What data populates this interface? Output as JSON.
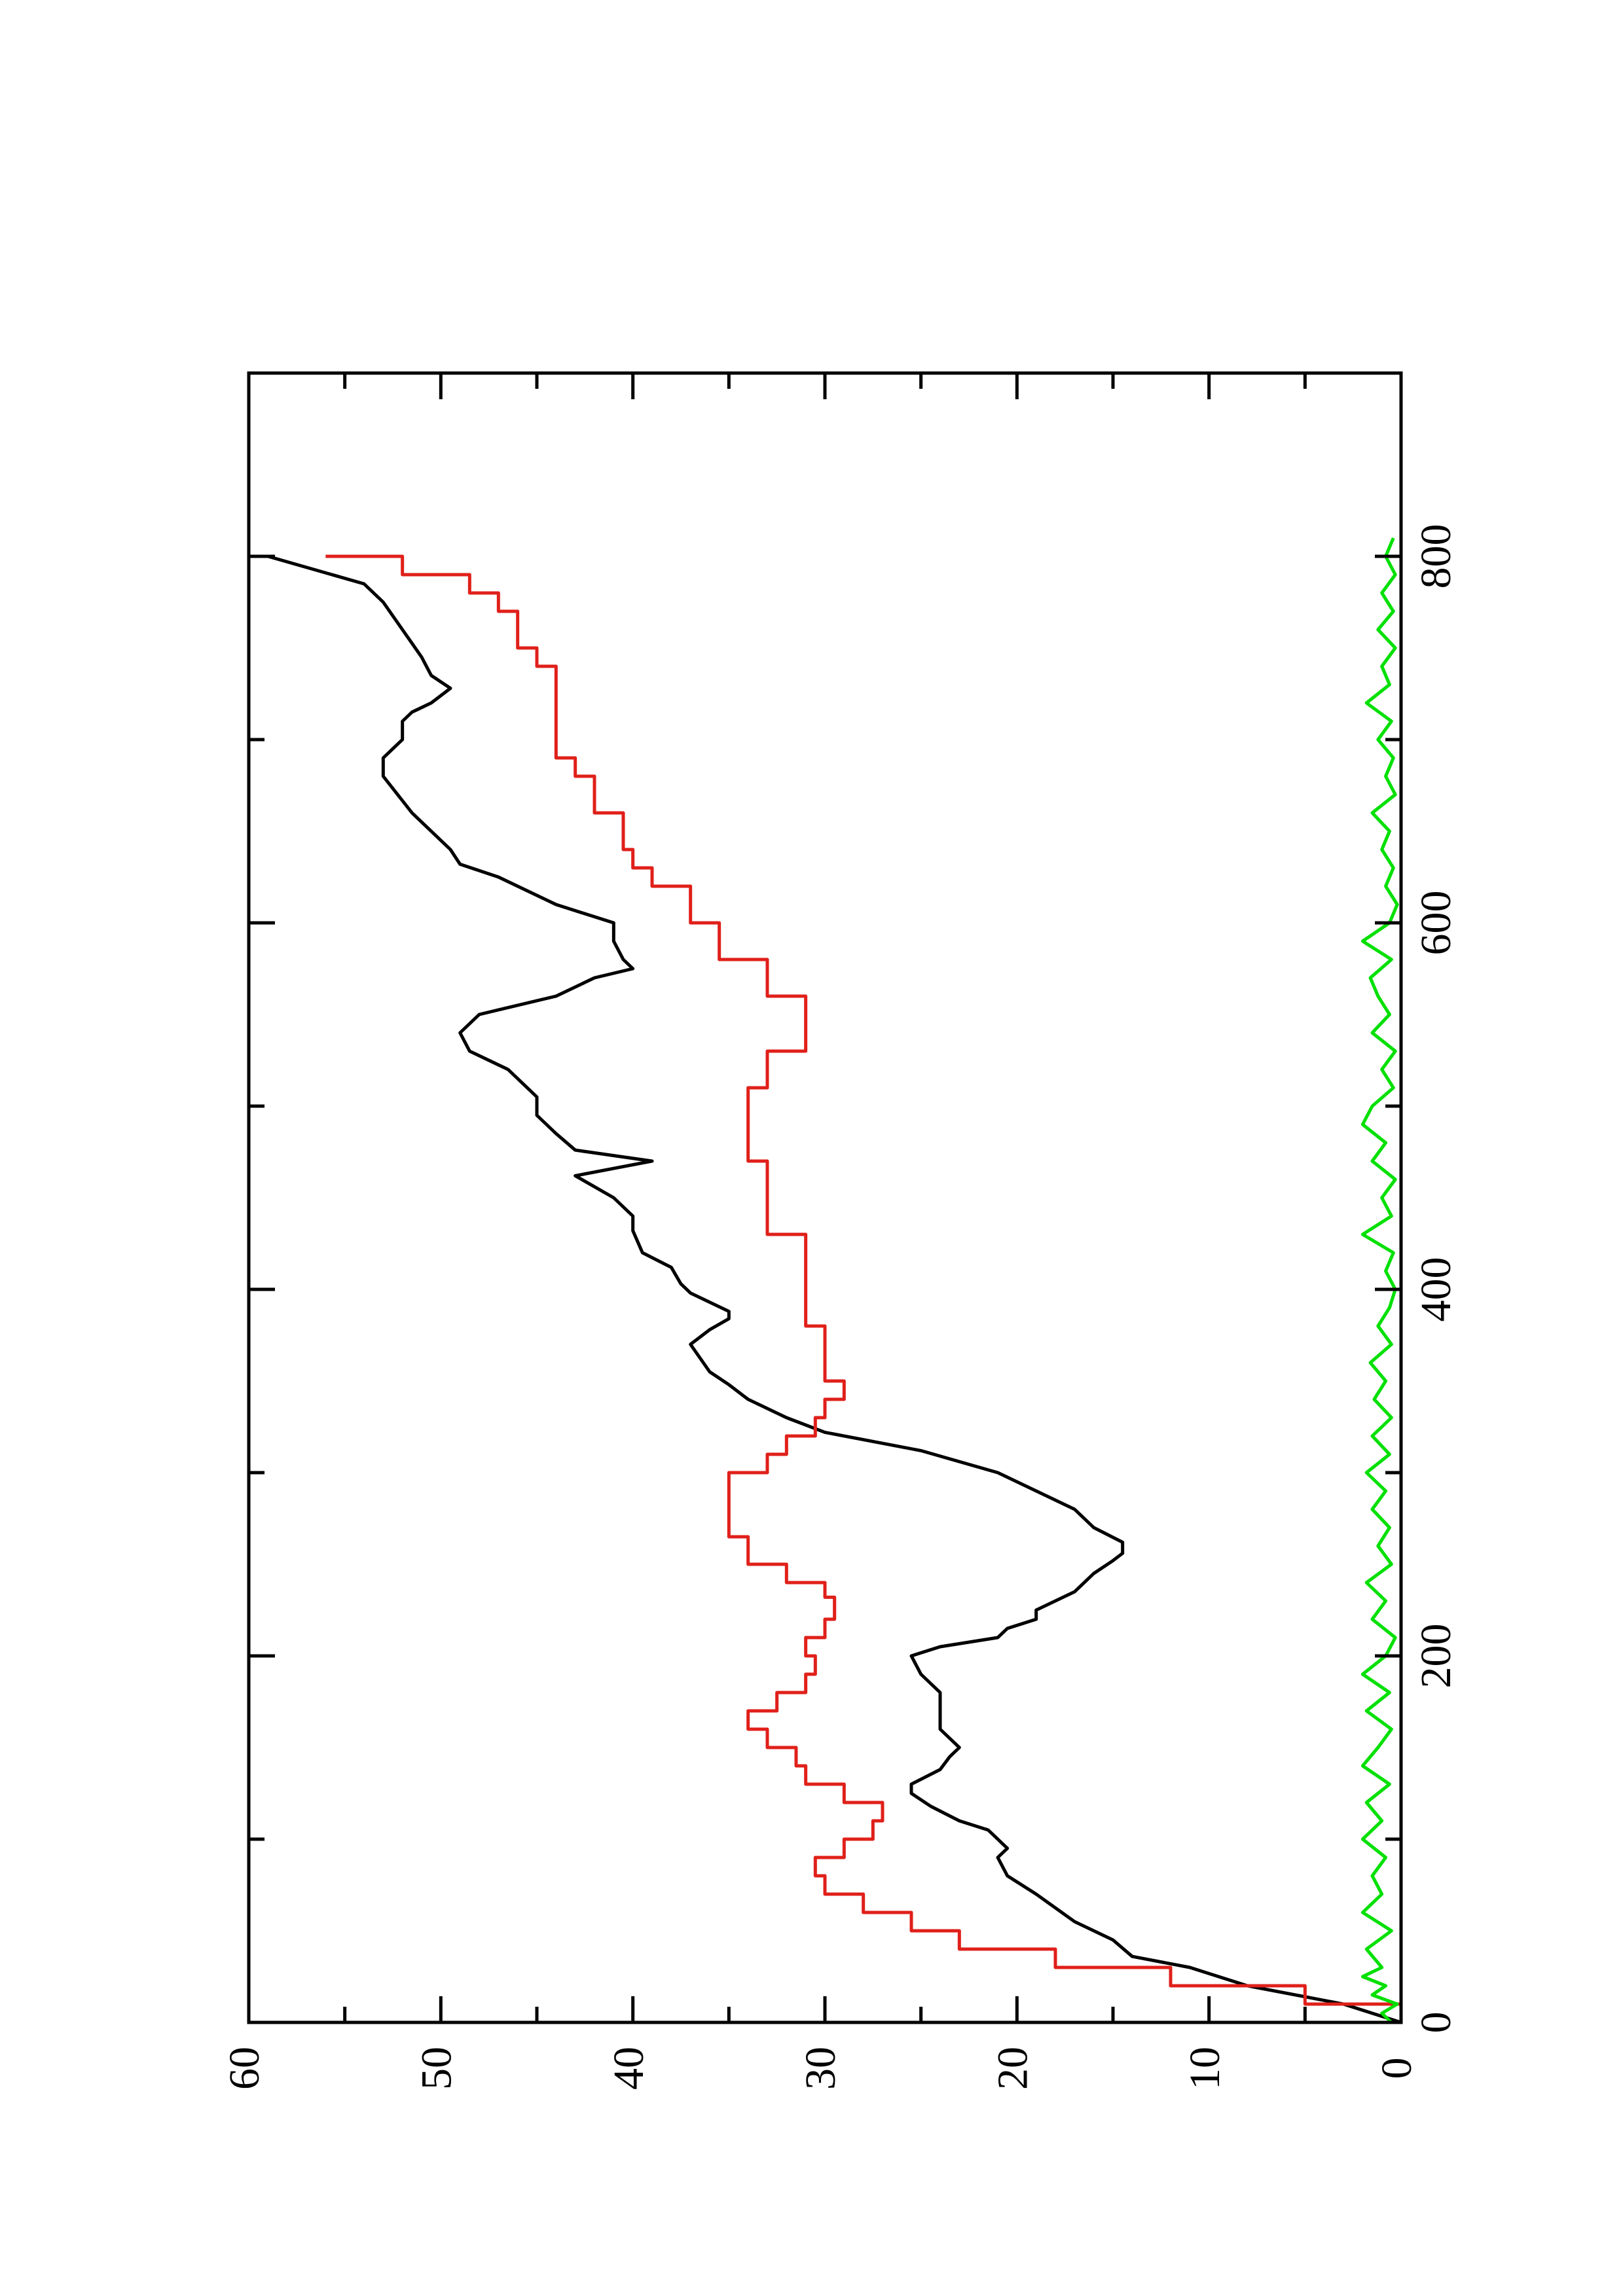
{
  "chart_data": {
    "type": "line",
    "orientation": "rotated-90-ccw",
    "title": "",
    "xlabel": "",
    "ylabel": "",
    "xlim": [
      0,
      900
    ],
    "ylim": [
      0,
      60
    ],
    "x_ticks": [
      0,
      200,
      400,
      600,
      800
    ],
    "x_tick_labels": [
      "0",
      "200",
      "400",
      "600",
      "800"
    ],
    "y_ticks": [
      0,
      10,
      20,
      30,
      40,
      50,
      60
    ],
    "y_tick_labels": [
      "0",
      "10",
      "20",
      "30",
      "40",
      "50",
      "60"
    ],
    "grid": false,
    "legend": "none",
    "series": [
      {
        "color": "#000000",
        "style": "smooth",
        "points": [
          [
            0,
            0
          ],
          [
            10,
            3
          ],
          [
            20,
            8
          ],
          [
            30,
            11
          ],
          [
            36,
            14
          ],
          [
            45,
            15
          ],
          [
            55,
            17
          ],
          [
            70,
            19
          ],
          [
            80,
            20.5
          ],
          [
            90,
            21
          ],
          [
            95,
            20.5
          ],
          [
            100,
            21
          ],
          [
            105,
            21.5
          ],
          [
            110,
            23
          ],
          [
            118,
            24.5
          ],
          [
            125,
            25.5
          ],
          [
            130,
            25.5
          ],
          [
            138,
            24
          ],
          [
            145,
            23.5
          ],
          [
            150,
            23
          ],
          [
            160,
            24
          ],
          [
            170,
            24
          ],
          [
            180,
            24
          ],
          [
            190,
            25
          ],
          [
            200,
            25.5
          ],
          [
            205,
            24
          ],
          [
            210,
            21
          ],
          [
            215,
            20.5
          ],
          [
            220,
            19
          ],
          [
            225,
            19
          ],
          [
            235,
            17
          ],
          [
            245,
            16
          ],
          [
            252,
            15
          ],
          [
            256,
            14.5
          ],
          [
            262,
            14.5
          ],
          [
            270,
            16
          ],
          [
            280,
            17
          ],
          [
            290,
            19
          ],
          [
            300,
            21
          ],
          [
            312,
            25
          ],
          [
            322,
            30
          ],
          [
            330,
            32
          ],
          [
            340,
            34
          ],
          [
            348,
            35
          ],
          [
            355,
            36
          ],
          [
            370,
            37
          ],
          [
            378,
            36
          ],
          [
            384,
            35
          ],
          [
            388,
            35
          ],
          [
            398,
            37
          ],
          [
            403,
            37.5
          ],
          [
            412,
            38
          ],
          [
            420,
            39.5
          ],
          [
            432,
            40
          ],
          [
            440,
            40
          ],
          [
            450,
            41
          ],
          [
            456,
            42
          ],
          [
            462,
            43
          ],
          [
            470,
            39
          ],
          [
            476,
            43
          ],
          [
            485,
            44
          ],
          [
            495,
            45
          ],
          [
            505,
            45
          ],
          [
            520,
            46.5
          ],
          [
            530,
            48.5
          ],
          [
            540,
            49
          ],
          [
            550,
            48
          ],
          [
            560,
            44
          ],
          [
            570,
            42
          ],
          [
            575,
            40
          ],
          [
            580,
            40.5
          ],
          [
            590,
            41
          ],
          [
            600,
            41
          ],
          [
            610,
            44
          ],
          [
            625,
            47
          ],
          [
            632,
            49
          ],
          [
            640,
            49.5
          ],
          [
            660,
            51.5
          ],
          [
            680,
            53
          ],
          [
            690,
            53
          ],
          [
            700,
            52
          ],
          [
            710,
            52
          ],
          [
            715,
            51.5
          ],
          [
            720,
            50.5
          ],
          [
            728,
            49.5
          ],
          [
            735,
            50.5
          ],
          [
            745,
            51
          ],
          [
            760,
            52
          ],
          [
            775,
            53
          ],
          [
            785,
            54
          ],
          [
            800,
            59
          ]
        ]
      },
      {
        "color": "#e0201a",
        "style": "step",
        "points": [
          [
            0,
            0
          ],
          [
            10,
            5
          ],
          [
            20,
            12
          ],
          [
            30,
            18
          ],
          [
            40,
            23
          ],
          [
            50,
            25.5
          ],
          [
            60,
            28
          ],
          [
            70,
            30
          ],
          [
            80,
            30.5
          ],
          [
            90,
            29
          ],
          [
            100,
            27.5
          ],
          [
            110,
            27
          ],
          [
            120,
            29
          ],
          [
            130,
            31
          ],
          [
            140,
            31.5
          ],
          [
            150,
            33
          ],
          [
            160,
            34
          ],
          [
            170,
            32.5
          ],
          [
            180,
            31
          ],
          [
            190,
            30.5
          ],
          [
            200,
            31
          ],
          [
            210,
            30
          ],
          [
            220,
            29.5
          ],
          [
            232,
            30
          ],
          [
            240,
            32
          ],
          [
            250,
            34
          ],
          [
            265,
            35
          ],
          [
            275,
            35
          ],
          [
            285,
            35
          ],
          [
            300,
            33
          ],
          [
            310,
            32
          ],
          [
            320,
            30.5
          ],
          [
            330,
            30
          ],
          [
            340,
            29
          ],
          [
            350,
            30
          ],
          [
            360,
            30
          ],
          [
            370,
            30
          ],
          [
            380,
            31
          ],
          [
            390,
            31
          ],
          [
            398,
            31
          ],
          [
            410,
            31
          ],
          [
            420,
            31
          ],
          [
            430,
            33
          ],
          [
            440,
            33
          ],
          [
            450,
            33
          ],
          [
            462,
            33
          ],
          [
            470,
            34
          ],
          [
            480,
            34
          ],
          [
            490,
            34
          ],
          [
            500,
            34
          ],
          [
            510,
            33
          ],
          [
            530,
            31
          ],
          [
            545,
            31
          ],
          [
            560,
            33
          ],
          [
            580,
            35.5
          ],
          [
            600,
            37
          ],
          [
            620,
            39
          ],
          [
            630,
            40
          ],
          [
            640,
            40.5
          ],
          [
            660,
            42
          ],
          [
            680,
            43
          ],
          [
            690,
            44
          ],
          [
            700,
            44
          ],
          [
            710,
            44
          ],
          [
            720,
            44
          ],
          [
            730,
            44
          ],
          [
            740,
            45
          ],
          [
            750,
            46
          ],
          [
            760,
            46
          ],
          [
            770,
            47
          ],
          [
            780,
            48.5
          ],
          [
            790,
            52
          ],
          [
            800,
            56
          ]
        ]
      },
      {
        "color": "#00e000",
        "style": "noise",
        "points": [
          [
            0,
            0.5
          ],
          [
            5,
            1
          ],
          [
            10,
            0.2
          ],
          [
            15,
            1.5
          ],
          [
            20,
            0.8
          ],
          [
            25,
            2
          ],
          [
            30,
            1
          ],
          [
            40,
            1.8
          ],
          [
            50,
            0.5
          ],
          [
            60,
            2
          ],
          [
            70,
            1
          ],
          [
            80,
            1.5
          ],
          [
            90,
            0.8
          ],
          [
            100,
            2
          ],
          [
            110,
            1
          ],
          [
            120,
            1.8
          ],
          [
            130,
            0.6
          ],
          [
            140,
            2
          ],
          [
            150,
            1.2
          ],
          [
            160,
            0.5
          ],
          [
            170,
            1.8
          ],
          [
            180,
            0.6
          ],
          [
            190,
            2
          ],
          [
            200,
            0.8
          ],
          [
            210,
            0.3
          ],
          [
            220,
            1.5
          ],
          [
            230,
            0.8
          ],
          [
            240,
            1.8
          ],
          [
            250,
            0.5
          ],
          [
            260,
            1.2
          ],
          [
            270,
            0.6
          ],
          [
            280,
            1.5
          ],
          [
            290,
            0.8
          ],
          [
            300,
            1.8
          ],
          [
            310,
            0.6
          ],
          [
            320,
            1.5
          ],
          [
            330,
            0.5
          ],
          [
            340,
            1.4
          ],
          [
            350,
            0.8
          ],
          [
            360,
            1.6
          ],
          [
            370,
            0.5
          ],
          [
            380,
            1.2
          ],
          [
            390,
            0.6
          ],
          [
            400,
            0.3
          ],
          [
            410,
            0.8
          ],
          [
            420,
            0.4
          ],
          [
            430,
            2
          ],
          [
            440,
            0.5
          ],
          [
            450,
            1
          ],
          [
            460,
            0.3
          ],
          [
            470,
            1.5
          ],
          [
            480,
            0.8
          ],
          [
            490,
            2
          ],
          [
            500,
            1.5
          ],
          [
            510,
            0.4
          ],
          [
            520,
            1
          ],
          [
            530,
            0.3
          ],
          [
            540,
            1.5
          ],
          [
            550,
            0.6
          ],
          [
            560,
            1.2
          ],
          [
            570,
            1.6
          ],
          [
            580,
            0.5
          ],
          [
            590,
            2
          ],
          [
            600,
            0.6
          ],
          [
            610,
            0.2
          ],
          [
            620,
            0.8
          ],
          [
            630,
            0.4
          ],
          [
            640,
            1
          ],
          [
            650,
            0.6
          ],
          [
            660,
            1.5
          ],
          [
            670,
            0.3
          ],
          [
            680,
            0.8
          ],
          [
            690,
            0.4
          ],
          [
            700,
            1.2
          ],
          [
            710,
            0.5
          ],
          [
            720,
            1.8
          ],
          [
            730,
            0.6
          ],
          [
            740,
            1
          ],
          [
            750,
            0.3
          ],
          [
            760,
            1.2
          ],
          [
            770,
            0.4
          ],
          [
            780,
            1
          ],
          [
            790,
            0.3
          ],
          [
            800,
            0.8
          ],
          [
            810,
            0.4
          ]
        ]
      }
    ]
  }
}
